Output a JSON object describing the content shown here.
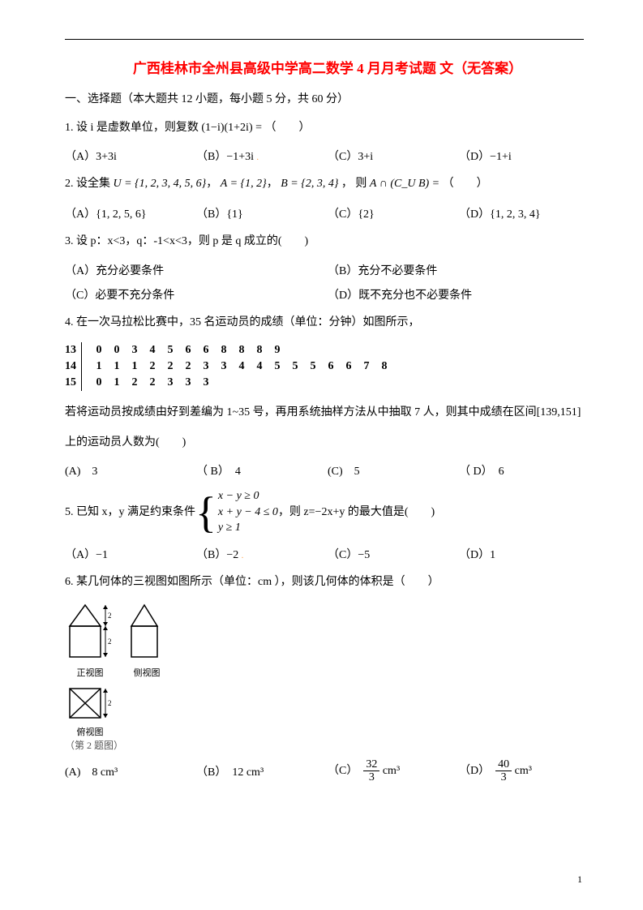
{
  "colors": {
    "title": "#ff0000",
    "text": "#000000",
    "bg": "#ffffff"
  },
  "title": "广西桂林市全州县高级中学高二数学 4 月月考试题 文（无答案）",
  "section1": "一、选择题（本大题共 12 小题，每小题 5 分，共 60 分）",
  "q1": {
    "stem": "1.  设 i 是虚数单位，则复数",
    "expr": "(1−i)(1+2i) =",
    "tail": "（　　）",
    "A": "（A）3+3i",
    "B": "（B）−1+3i",
    "C": "（C）3+i",
    "D": "（D）−1+i"
  },
  "q2": {
    "stem": "2.  设全集",
    "U": "U = {1, 2, 3, 4, 5, 6}",
    "A": "A = {1, 2}",
    "B": "B = {2, 3, 4}",
    "then": "，  则",
    "expr": "A ∩ (C_U B) =",
    "tail": "（　　）",
    "optA": "（A）{1, 2, 5, 6}",
    "optB": "（B）{1}",
    "optC": "（C）{2}",
    "optD": "（D）{1, 2, 3, 4}"
  },
  "q3": {
    "stem": "3.  设 p：x<3，q：-1<x<3，则 p 是 q 成立的(　　)",
    "A": "（A）充分必要条件",
    "B": "（B）充分不必要条件",
    "C": "（C）必要不充分条件",
    "D": "（D）既不充分也不必要条件"
  },
  "q4": {
    "stem": "4.  在一次马拉松比赛中，35 名运动员的成绩（单位：分钟）如图所示，",
    "stem2": "若将运动员按成绩由好到差编为 1~35 号，再用系统抽样方法从中抽取 7 人，则其中成绩在区间[139,151]",
    "stem3": "上的运动员人数为(　　)",
    "stemleaf": {
      "stems": [
        "13",
        "14",
        "15"
      ],
      "leaves": [
        [
          "0",
          "0",
          "3",
          "4",
          "5",
          "6",
          "6",
          "8",
          "8",
          "8",
          "9"
        ],
        [
          "1",
          "1",
          "1",
          "2",
          "2",
          "2",
          "3",
          "3",
          "4",
          "4",
          "5",
          "5",
          "5",
          "6",
          "6",
          "7",
          "8"
        ],
        [
          "0",
          "1",
          "2",
          "2",
          "3",
          "3",
          "3"
        ]
      ]
    },
    "A": "(A)　3",
    "B": "（ B）　4",
    "C": "(C)　5",
    "D": "（ D）　6"
  },
  "q5": {
    "stem": "5.  已知 x，y 满足约束条件",
    "c1": "x − y ≥ 0",
    "c2": "x + y − 4 ≤ 0",
    "c3": "y ≥ 1",
    "stem2": "，则 z=−2x+y 的最大值是(　　)",
    "A": "（A）−1",
    "B": "（B）−2",
    "C": "（C）−5",
    "D": "（D）1"
  },
  "q6": {
    "stem": "6.  某几何体的三视图如图所示（单位：cm ），则该几何体的体积是（　　）",
    "views": {
      "front": "正视图",
      "side": "侧视图",
      "top": "俯视图",
      "caption": "（第 2 题图）",
      "dim": "2"
    },
    "A": "(A)　8 cm³",
    "B": "（B）　12 cm³",
    "C_pre": "（C）　",
    "C_num": "32",
    "C_den": "3",
    "C_suf": " cm³",
    "D_pre": "（D）　",
    "D_num": "40",
    "D_den": "3",
    "D_suf": " cm³"
  },
  "pagenum": "1"
}
